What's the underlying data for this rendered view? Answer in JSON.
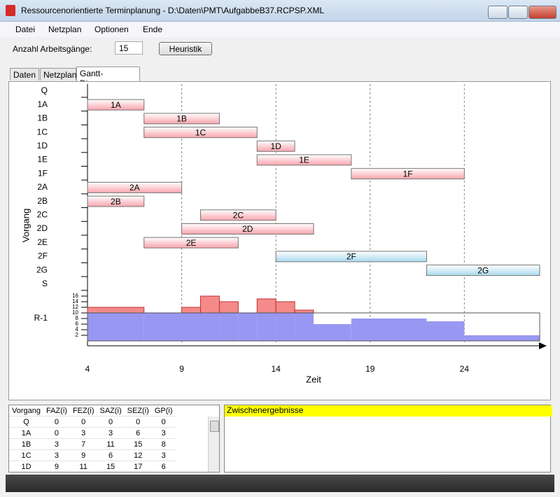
{
  "window": {
    "title": "Ressourcenorientierte Terminplanung - D:\\Daten\\PMT\\AufgabbeB37.RCPSP.XML"
  },
  "menu": [
    "Datei",
    "Netzplan",
    "Optionen",
    "Ende"
  ],
  "form": {
    "label": "Anzahl Arbeitsgänge:",
    "value": "15",
    "button": "Heuristik"
  },
  "tabs": [
    "Daten",
    "Netzplan",
    "Gantt-Diagramm"
  ],
  "gantt": {
    "type": "gantt",
    "ylabel": "Vorgang",
    "xlabel": "Zeit",
    "xlim": [
      4,
      28
    ],
    "xticks": [
      4,
      9,
      14,
      19,
      24
    ],
    "rows": [
      "Q",
      "1A",
      "1B",
      "1C",
      "1D",
      "1E",
      "1F",
      "2A",
      "2B",
      "2C",
      "2D",
      "2E",
      "2F",
      "2G",
      "S"
    ],
    "tasks": [
      {
        "name": "1A",
        "start": 4,
        "end": 7,
        "color": "#f8a4ac"
      },
      {
        "name": "1B",
        "start": 7,
        "end": 11,
        "color": "#f8a4ac"
      },
      {
        "name": "1C",
        "start": 7,
        "end": 13,
        "color": "#f8a4ac"
      },
      {
        "name": "1D",
        "start": 13,
        "end": 15,
        "color": "#f8a4ac"
      },
      {
        "name": "1E",
        "start": 13,
        "end": 18,
        "color": "#f8a4ac"
      },
      {
        "name": "1F",
        "start": 18,
        "end": 24,
        "color": "#f8a4ac"
      },
      {
        "name": "2A",
        "start": 4,
        "end": 9,
        "color": "#f8a4ac"
      },
      {
        "name": "2B",
        "start": 4,
        "end": 7,
        "color": "#f8a4ac"
      },
      {
        "name": "2C",
        "start": 10,
        "end": 14,
        "color": "#f8a4ac"
      },
      {
        "name": "2D",
        "start": 9,
        "end": 16,
        "color": "#f8a4ac"
      },
      {
        "name": "2E",
        "start": 7,
        "end": 12,
        "color": "#f8a4ac"
      },
      {
        "name": "2F",
        "start": 14,
        "end": 22,
        "color": "#a9d9ee"
      },
      {
        "name": "2G",
        "start": 22,
        "end": 28,
        "color": "#a9d9ee"
      }
    ],
    "resource": {
      "label": "R-1",
      "capacity": 10,
      "ylim": [
        0,
        16
      ],
      "yticks": [
        2,
        4,
        6,
        8,
        10,
        12,
        14,
        16
      ],
      "bins": [
        4,
        7,
        9,
        10,
        11,
        12,
        13,
        14,
        15,
        16,
        18,
        22,
        24,
        28
      ],
      "values": [
        12,
        10,
        12,
        16,
        14,
        10,
        15,
        14,
        11,
        6,
        8,
        7,
        2
      ],
      "color": "#9898f2",
      "over_color": "#f48a8a"
    }
  },
  "table": {
    "headers": [
      "Vorgang",
      "FAZ(i)",
      "FEZ(i)",
      "SAZ(i)",
      "SEZ(i)",
      "GP(i)"
    ],
    "rows": [
      [
        "Q",
        "0",
        "0",
        "0",
        "0",
        "0"
      ],
      [
        "1A",
        "0",
        "3",
        "3",
        "6",
        "3"
      ],
      [
        "1B",
        "3",
        "7",
        "11",
        "15",
        "8"
      ],
      [
        "1C",
        "3",
        "9",
        "6",
        "12",
        "3"
      ],
      [
        "1D",
        "9",
        "11",
        "15",
        "17",
        "6"
      ]
    ]
  },
  "panel": {
    "title": "Zwischenergebnisse"
  }
}
